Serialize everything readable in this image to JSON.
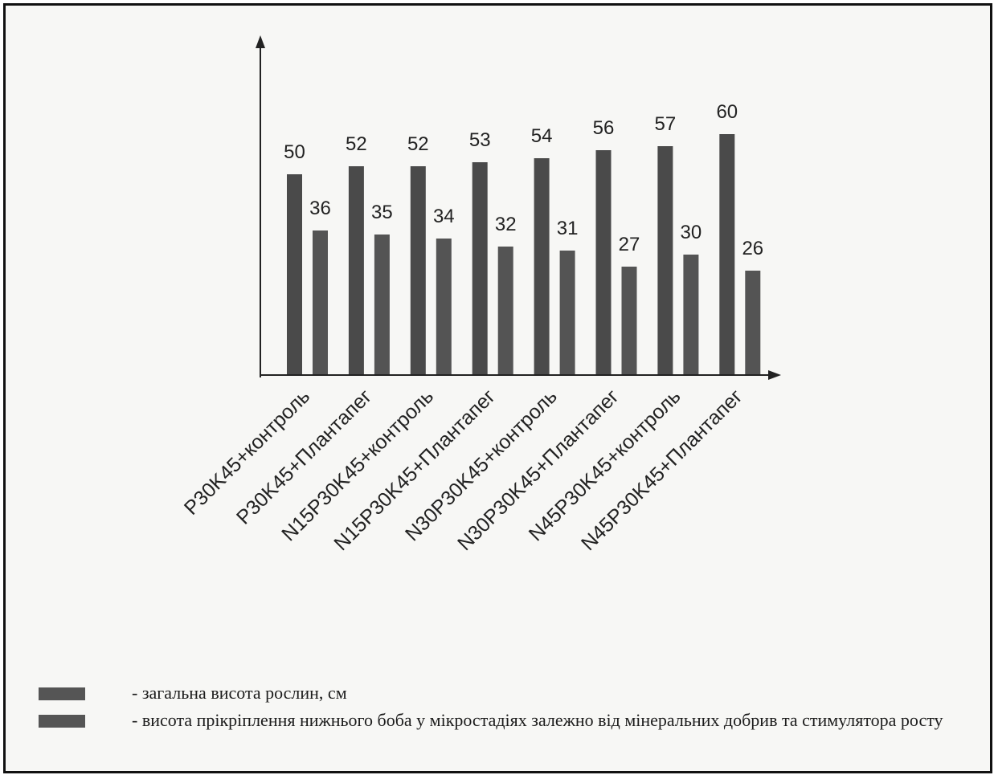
{
  "chart_data": {
    "type": "bar",
    "categories": [
      "P30K45+контроль",
      "P30K45+Плантапег",
      "N15P30K45+контроль",
      "N15P30K45+Плантапег",
      "N30P30K45+контроль",
      "N30P30K45+Плантапег",
      "N45P30K45+контроль",
      "N45P30K45+Плантапег"
    ],
    "series": [
      {
        "name": "- загальна висота рослин, см",
        "values": [
          50,
          52,
          52,
          53,
          54,
          56,
          57,
          60
        ],
        "color": "#4a4a4a"
      },
      {
        "name": "- висота прікріплення нижнього боба у мікростадіях залежно від мінеральних добрив та стимулятора росту",
        "values": [
          36,
          35,
          34,
          32,
          31,
          27,
          30,
          26
        ],
        "color": "#545454"
      }
    ],
    "ylim": [
      0,
      70
    ],
    "grid": false,
    "legend_position": "bottom-left"
  }
}
